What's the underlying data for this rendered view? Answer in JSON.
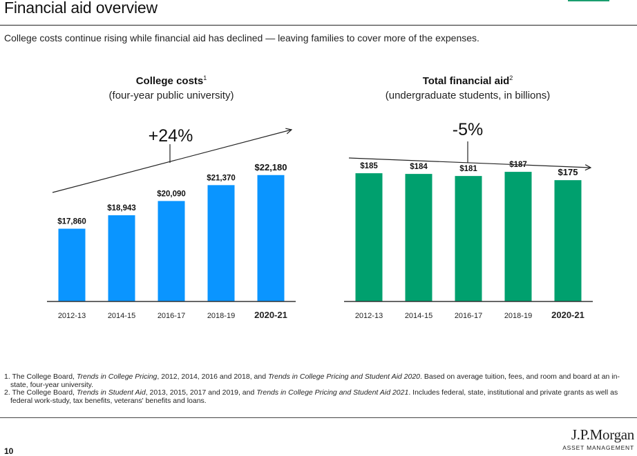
{
  "header": {
    "title": "Financial aid overview",
    "subtitle": "College costs continue rising while financial aid has declined — leaving families to cover more of the expenses."
  },
  "chart_data": [
    {
      "type": "bar",
      "title": "College costs",
      "title_note": "1",
      "subtitle": "(four-year public university)",
      "categories": [
        "2012-13",
        "2014-15",
        "2016-17",
        "2018-19",
        "2020-21"
      ],
      "values": [
        17860,
        18943,
        20090,
        21370,
        22180
      ],
      "value_labels": [
        "$17,860",
        "$18,943",
        "$20,090",
        "$21,370",
        "$22,180"
      ],
      "change_label": "+24%",
      "trend_direction": "up",
      "color": "#0a95ff",
      "highlight_last_category": true,
      "ylim": [
        12000,
        23500
      ],
      "grid": false
    },
    {
      "type": "bar",
      "title": "Total financial aid",
      "title_note": "2",
      "subtitle": "(undergraduate students, in billions)",
      "categories": [
        "2012-13",
        "2014-15",
        "2016-17",
        "2018-19",
        "2020-21"
      ],
      "values": [
        185,
        184,
        181,
        187,
        175
      ],
      "value_labels": [
        "$185",
        "$184",
        "$181",
        "$187",
        "$175"
      ],
      "change_label": "-5%",
      "trend_direction": "down",
      "color": "#00a06e",
      "highlight_last_category": true,
      "ylim": [
        0,
        206
      ],
      "grid": false
    }
  ],
  "footnotes": [
    {
      "n": "1. ",
      "a": "The College Board, ",
      "i": "Trends in College Pricing",
      "b": ", 2012, 2014, 2016 and 2018, and ",
      "i2": "Trends in College Pricing and Student Aid 2020",
      "c": ". Based on average tuition, fees, and room and board at an in-state, four-year university."
    },
    {
      "n": "2. ",
      "a": "The College Board, ",
      "i": "Trends in Student Aid",
      "b": ", 2013, 2015, 2017 and 2019, and ",
      "i2": "Trends in College Pricing and Student Aid 2021",
      "c": ". Includes federal, state, institutional and private grants as well as federal work-study, tax benefits, veterans' benefits and loans."
    }
  ],
  "footer": {
    "page_number": "10",
    "logo_name": "J.P.Morgan",
    "logo_sub": "ASSET MANAGEMENT"
  }
}
